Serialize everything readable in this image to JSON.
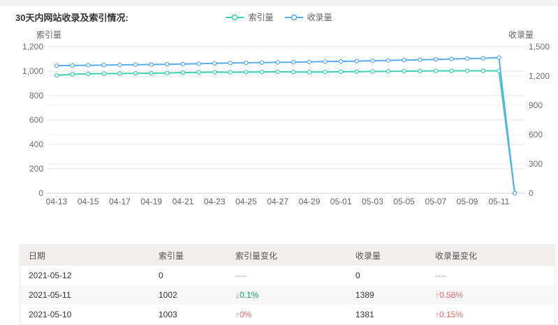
{
  "page": {
    "title": "30天内网站收录及索引情况:"
  },
  "legend": [
    {
      "label": "索引量",
      "color": "#3ed2b4"
    },
    {
      "label": "收录量",
      "color": "#5aacf2"
    }
  ],
  "chart_data": {
    "type": "line",
    "x": [
      "04-13",
      "04-14",
      "04-15",
      "04-16",
      "04-17",
      "04-18",
      "04-19",
      "04-20",
      "04-21",
      "04-22",
      "04-23",
      "04-24",
      "04-25",
      "04-26",
      "04-27",
      "04-28",
      "04-29",
      "04-30",
      "05-01",
      "05-02",
      "05-03",
      "05-04",
      "05-05",
      "05-06",
      "05-07",
      "05-08",
      "05-09",
      "05-10",
      "05-11",
      "05-12"
    ],
    "x_tick_labels": [
      "04-13",
      "04-15",
      "04-17",
      "04-19",
      "04-21",
      "04-23",
      "04-25",
      "04-27",
      "04-29",
      "05-01",
      "05-03",
      "05-05",
      "05-07",
      "05-09",
      "05-11"
    ],
    "left_axis": {
      "name": "索引量",
      "range": [
        0,
        1200
      ],
      "ticks": [
        "0",
        "200",
        "400",
        "600",
        "800",
        "1,000",
        "1,200"
      ]
    },
    "right_axis": {
      "name": "收录量",
      "range": [
        0,
        1500
      ],
      "ticks": [
        "0",
        "300",
        "600",
        "900",
        "1,200",
        "1,500"
      ]
    },
    "grid": true,
    "legend_position": "top-center",
    "series": [
      {
        "name": "索引量",
        "axis": "left",
        "color": "#3ed2b4",
        "values": [
          965,
          975,
          978,
          980,
          981,
          982,
          983,
          985,
          988,
          990,
          992,
          991,
          992,
          993,
          995,
          993,
          992,
          993,
          995,
          996,
          997,
          998,
          1000,
          1001,
          1002,
          1002,
          1003,
          1003,
          1002,
          0
        ]
      },
      {
        "name": "收录量",
        "axis": "right",
        "color": "#5aacf2",
        "values": [
          1305,
          1308,
          1310,
          1312,
          1314,
          1316,
          1318,
          1320,
          1323,
          1326,
          1330,
          1333,
          1336,
          1338,
          1340,
          1342,
          1345,
          1348,
          1350,
          1353,
          1356,
          1360,
          1363,
          1366,
          1370,
          1374,
          1379,
          1381,
          1389,
          0
        ]
      }
    ]
  },
  "table": {
    "headers": [
      "日期",
      "索引量",
      "索引量变化",
      "收录量",
      "收录量变化"
    ],
    "rows": [
      {
        "date": "2021-05-12",
        "index": "0",
        "index_change": {
          "text": "----",
          "dir": "none"
        },
        "collect": "0",
        "collect_change": {
          "text": "----",
          "dir": "none"
        }
      },
      {
        "date": "2021-05-11",
        "index": "1002",
        "index_change": {
          "text": "↓0.1%",
          "dir": "down"
        },
        "collect": "1389",
        "collect_change": {
          "text": "↑0.58%",
          "dir": "up"
        }
      },
      {
        "date": "2021-05-10",
        "index": "1003",
        "index_change": {
          "text": "↑0%",
          "dir": "up"
        },
        "collect": "1381",
        "collect_change": {
          "text": "↑0.15%",
          "dir": "up"
        }
      }
    ],
    "colors": {
      "up": "#f56c6c",
      "down": "#21a05c",
      "none": "#999999"
    }
  }
}
